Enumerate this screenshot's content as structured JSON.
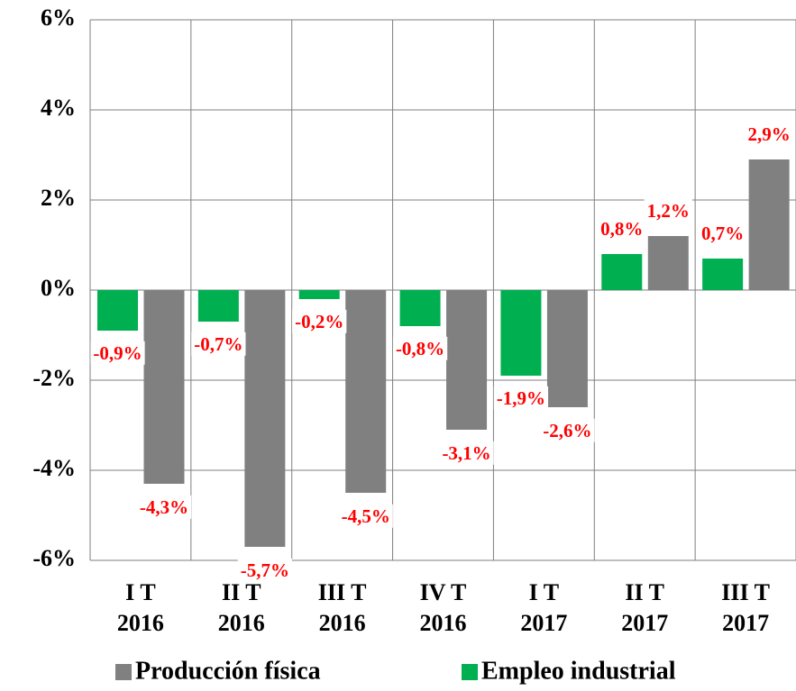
{
  "chart_data": {
    "type": "bar",
    "categories": [
      "I T 2016",
      "II T 2016",
      "III T 2016",
      "IV T 2016",
      "I T 2017",
      "II T 2017",
      "III T 2017"
    ],
    "series": [
      {
        "name": "Producción física",
        "color": "#808080",
        "values": [
          -4.3,
          -5.7,
          -4.5,
          -3.1,
          -2.6,
          1.2,
          2.9
        ],
        "value_labels": [
          "-4,3%",
          "-5,7%",
          "-4,5%",
          "-3,1%",
          "-2,6%",
          "1,2%",
          "2,9%"
        ]
      },
      {
        "name": "Empleo industrial",
        "color": "#00b050",
        "values": [
          -0.9,
          -0.7,
          -0.2,
          -0.8,
          -1.9,
          0.8,
          0.7
        ],
        "value_labels": [
          "-0,9%",
          "-0,7%",
          "-0,2%",
          "-0,8%",
          "-1,9%",
          "0,8%",
          "0,7%"
        ]
      }
    ],
    "ylim": [
      -6,
      6
    ],
    "yticks": [
      {
        "value": -6,
        "label": "-6%"
      },
      {
        "value": -4,
        "label": "-4%"
      },
      {
        "value": -2,
        "label": "-2%"
      },
      {
        "value": 0,
        "label": "0%"
      },
      {
        "value": 2,
        "label": "2%"
      },
      {
        "value": 4,
        "label": "4%"
      },
      {
        "value": 6,
        "label": "6%"
      }
    ],
    "grid": true,
    "legend": "bottom"
  }
}
